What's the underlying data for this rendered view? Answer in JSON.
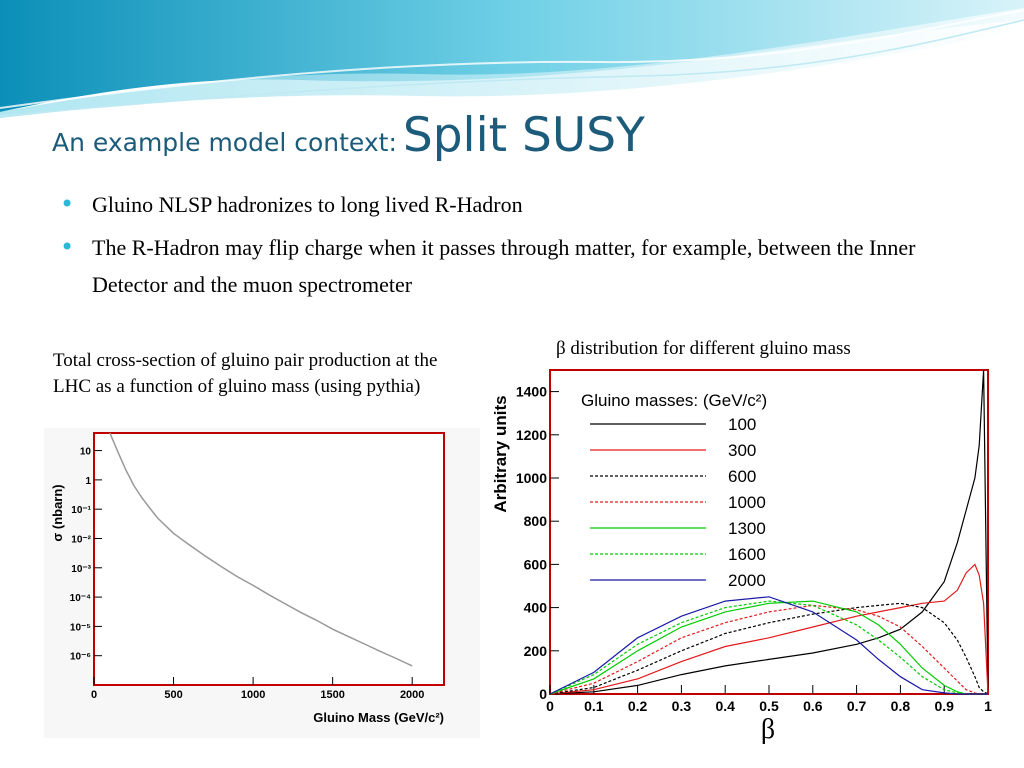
{
  "slide": {
    "title_small": "An example model context:",
    "title_big": "Split SUSY",
    "bullets": [
      "Gluino NLSP hadronizes to long lived R-Hadron",
      "The R-Hadron may flip charge when it passes through matter, for example, between the Inner Detector and the muon spectrometer"
    ],
    "bullet_color": "#2ab8d6",
    "title_color": "#1c5b7a",
    "left_caption": "Total cross-section of gluino pair production at the LHC as a function of gluino mass (using pythia)",
    "right_caption": "β distribution for different gluino mass"
  },
  "chart_data": [
    {
      "type": "line",
      "title": "",
      "xlabel": "Gluino Mass (GeV/c²)",
      "ylabel": "σ (nbarn)",
      "xlim": [
        0,
        2200
      ],
      "ylim_log10": [
        -7,
        1.6
      ],
      "log_y": true,
      "x_ticks": [
        "0",
        "500",
        "1000",
        "1500",
        "2000"
      ],
      "y_ticks": [
        "10⁻⁶",
        "10⁻⁵",
        "10⁻⁴",
        "10⁻³",
        "10⁻²",
        "10⁻¹",
        "1",
        "10"
      ],
      "series": [
        {
          "color": "#999999",
          "x": [
            100,
            150,
            200,
            250,
            300,
            350,
            400,
            500,
            600,
            700,
            800,
            900,
            1000,
            1100,
            1200,
            1300,
            1400,
            1500,
            1600,
            1700,
            1800,
            1900,
            2000
          ],
          "y": [
            60,
            9,
            2.2,
            0.65,
            0.25,
            0.11,
            0.05,
            0.015,
            0.006,
            0.0025,
            0.0011,
            0.0005,
            0.00025,
            0.00012,
            6e-05,
            3e-05,
            1.6e-05,
            8e-06,
            4.5e-06,
            2.5e-06,
            1.4e-06,
            8e-07,
            4.5e-07
          ]
        }
      ],
      "grid": false
    },
    {
      "type": "line",
      "title": "",
      "xlabel": "β",
      "ylabel": "Arbitrary units",
      "xlim": [
        0,
        1
      ],
      "ylim": [
        0,
        1500
      ],
      "x_ticks": [
        "0",
        "0.1",
        "0.2",
        "0.3",
        "0.4",
        "0.5",
        "0.6",
        "0.7",
        "0.8",
        "0.9",
        "1"
      ],
      "y_ticks": [
        "0",
        "200",
        "400",
        "600",
        "800",
        "1000",
        "1200",
        "1400"
      ],
      "legend_title": "Gluino masses: (GeV/c²)",
      "legend_position": "top-left",
      "grid": false,
      "x": [
        0.0,
        0.1,
        0.2,
        0.3,
        0.4,
        0.5,
        0.6,
        0.7,
        0.75,
        0.8,
        0.85,
        0.9,
        0.93,
        0.95,
        0.97,
        0.98,
        0.99,
        1.0
      ],
      "series": [
        {
          "name": "100",
          "color": "#000000",
          "dashed": false,
          "values": [
            0,
            10,
            40,
            90,
            130,
            160,
            190,
            230,
            260,
            300,
            380,
            520,
            700,
            850,
            1000,
            1150,
            1500,
            0
          ]
        },
        {
          "name": "300",
          "color": "#e41a1c",
          "dashed": false,
          "values": [
            0,
            20,
            70,
            150,
            220,
            260,
            310,
            360,
            380,
            400,
            420,
            430,
            480,
            560,
            600,
            550,
            420,
            0
          ]
        },
        {
          "name": "600",
          "color": "#000000",
          "dashed": true,
          "values": [
            0,
            30,
            110,
            200,
            280,
            330,
            370,
            400,
            410,
            420,
            400,
            330,
            250,
            170,
            80,
            30,
            10,
            0
          ]
        },
        {
          "name": "1000",
          "color": "#e41a1c",
          "dashed": true,
          "values": [
            0,
            50,
            150,
            260,
            330,
            380,
            410,
            390,
            360,
            310,
            220,
            120,
            60,
            20,
            5,
            0,
            0,
            0
          ]
        },
        {
          "name": "1300",
          "color": "#00cc00",
          "dashed": false,
          "values": [
            0,
            70,
            200,
            310,
            380,
            420,
            430,
            380,
            320,
            230,
            120,
            40,
            10,
            0,
            0,
            0,
            0,
            0
          ]
        },
        {
          "name": "1600",
          "color": "#00cc00",
          "dashed": true,
          "values": [
            0,
            90,
            230,
            330,
            400,
            430,
            410,
            320,
            250,
            170,
            80,
            20,
            5,
            0,
            0,
            0,
            0,
            0
          ]
        },
        {
          "name": "2000",
          "color": "#1a1aa8",
          "dashed": false,
          "values": [
            0,
            100,
            260,
            360,
            430,
            450,
            380,
            250,
            160,
            80,
            20,
            5,
            0,
            0,
            0,
            0,
            0,
            0
          ]
        }
      ]
    }
  ]
}
